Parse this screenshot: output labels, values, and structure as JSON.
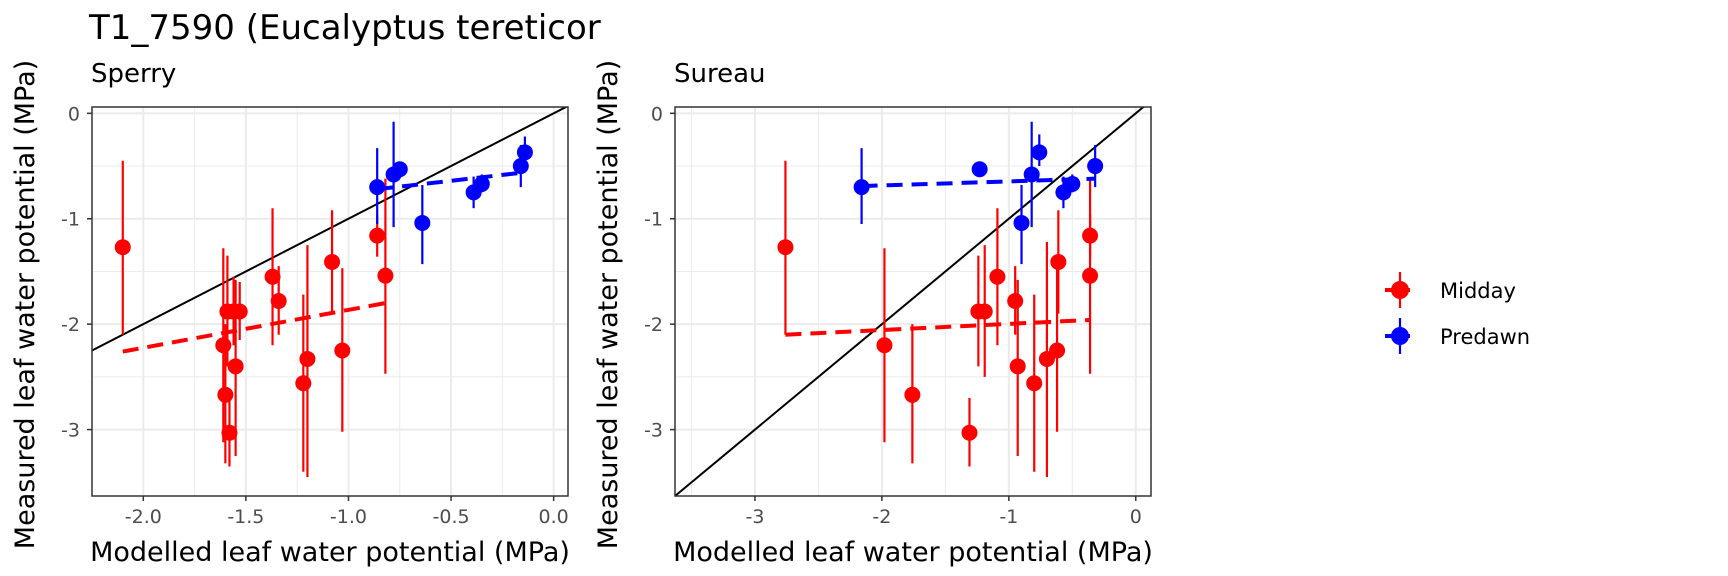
{
  "title": "T1_7590 (Eucalyptus tereticor",
  "colors": {
    "Midday": "#ff0000",
    "Predawn": "#0000ff",
    "identity": "#000000",
    "grid": "#ebebeb",
    "panel_border": "#333333"
  },
  "legend": {
    "entries": [
      "Midday",
      "Predawn"
    ],
    "position": "right"
  },
  "chart_data": [
    {
      "type": "scatter",
      "panel": "Sperry",
      "xlabel": "Modelled leaf water potential (MPa)",
      "ylabel": "Measured leaf water potential (MPa)",
      "xlim": [
        -2.25,
        0.07
      ],
      "ylim": [
        -3.63,
        0.06
      ],
      "xticks": [
        -2.0,
        -1.5,
        -1.0,
        -0.5,
        0.0
      ],
      "xtick_labels": [
        "-2.0",
        "-1.5",
        "-1.0",
        "-0.5",
        "0.0"
      ],
      "yticks": [
        0,
        -1,
        -2,
        -3
      ],
      "ytick_labels": [
        "0",
        "-1",
        "-2",
        "-3"
      ],
      "grid": true,
      "identity_line": true,
      "series": [
        {
          "name": "Midday",
          "points": [
            {
              "x": -2.1,
              "y": -1.27,
              "ylo": -2.1,
              "yhi": -0.45
            },
            {
              "x": -1.61,
              "y": -2.2,
              "ylo": -3.12,
              "yhi": -1.28
            },
            {
              "x": -1.6,
              "y": -2.67,
              "ylo": -3.32,
              "yhi": -2.0
            },
            {
              "x": -1.59,
              "y": -1.88,
              "ylo": -2.4,
              "yhi": -1.35
            },
            {
              "x": -1.58,
              "y": -3.03,
              "ylo": -3.35,
              "yhi": -2.7
            },
            {
              "x": -1.56,
              "y": -1.88,
              "ylo": -2.2,
              "yhi": -1.55
            },
            {
              "x": -1.55,
              "y": -2.4,
              "ylo": -3.25,
              "yhi": -1.58
            },
            {
              "x": -1.53,
              "y": -1.88,
              "ylo": -2.15,
              "yhi": -1.6
            },
            {
              "x": -1.37,
              "y": -1.55,
              "ylo": -2.2,
              "yhi": -0.9
            },
            {
              "x": -1.34,
              "y": -1.78,
              "ylo": -2.1,
              "yhi": -1.45
            },
            {
              "x": -1.22,
              "y": -2.56,
              "ylo": -3.4,
              "yhi": -1.72
            },
            {
              "x": -1.2,
              "y": -2.33,
              "ylo": -3.45,
              "yhi": -1.25
            },
            {
              "x": -1.08,
              "y": -1.41,
              "ylo": -1.9,
              "yhi": -0.92
            },
            {
              "x": -1.03,
              "y": -2.25,
              "ylo": -3.02,
              "yhi": -1.47
            },
            {
              "x": -0.86,
              "y": -1.16,
              "ylo": -1.36,
              "yhi": -0.96
            },
            {
              "x": -0.82,
              "y": -1.54,
              "ylo": -2.47,
              "yhi": -0.62
            }
          ],
          "fit": {
            "x": [
              -2.1,
              -0.82
            ],
            "y": [
              -2.26,
              -1.8
            ]
          }
        },
        {
          "name": "Predawn",
          "points": [
            {
              "x": -0.86,
              "y": -0.7,
              "ylo": -1.05,
              "yhi": -0.33
            },
            {
              "x": -0.78,
              "y": -0.58,
              "ylo": -1.08,
              "yhi": -0.08
            },
            {
              "x": -0.75,
              "y": -0.53,
              "ylo": -0.6,
              "yhi": -0.46
            },
            {
              "x": -0.64,
              "y": -1.04,
              "ylo": -1.43,
              "yhi": -0.68
            },
            {
              "x": -0.39,
              "y": -0.75,
              "ylo": -0.9,
              "yhi": -0.6
            },
            {
              "x": -0.35,
              "y": -0.67,
              "ylo": -0.75,
              "yhi": -0.58
            },
            {
              "x": -0.16,
              "y": -0.5,
              "ylo": -0.7,
              "yhi": -0.3
            },
            {
              "x": -0.14,
              "y": -0.37,
              "ylo": -0.5,
              "yhi": -0.22
            }
          ],
          "fit": {
            "x": [
              -0.86,
              -0.14
            ],
            "y": [
              -0.72,
              -0.56
            ]
          }
        }
      ]
    },
    {
      "type": "scatter",
      "panel": "Sureau",
      "xlabel": "Modelled leaf water potential (MPa)",
      "ylabel": "Measured leaf water potential (MPa)",
      "xlim": [
        -3.63,
        0.12
      ],
      "ylim": [
        -3.63,
        0.06
      ],
      "xticks": [
        -3,
        -2,
        -1,
        0
      ],
      "xtick_labels": [
        "-3",
        "-2",
        "-1",
        "0"
      ],
      "yticks": [
        0,
        -1,
        -2,
        -3
      ],
      "ytick_labels": [
        "0",
        "-1",
        "-2",
        "-3"
      ],
      "grid": true,
      "identity_line": true,
      "series": [
        {
          "name": "Midday",
          "points": [
            {
              "x": -2.76,
              "y": -1.27,
              "ylo": -2.1,
              "yhi": -0.45
            },
            {
              "x": -1.98,
              "y": -2.2,
              "ylo": -3.12,
              "yhi": -1.28
            },
            {
              "x": -1.76,
              "y": -2.67,
              "ylo": -3.32,
              "yhi": -2.0
            },
            {
              "x": -1.31,
              "y": -3.03,
              "ylo": -3.35,
              "yhi": -2.7
            },
            {
              "x": -1.24,
              "y": -1.88,
              "ylo": -2.4,
              "yhi": -1.35
            },
            {
              "x": -1.19,
              "y": -1.88,
              "ylo": -2.5,
              "yhi": -1.25
            },
            {
              "x": -1.09,
              "y": -1.55,
              "ylo": -2.2,
              "yhi": -0.9
            },
            {
              "x": -0.95,
              "y": -1.78,
              "ylo": -2.1,
              "yhi": -1.45
            },
            {
              "x": -0.93,
              "y": -2.4,
              "ylo": -3.25,
              "yhi": -1.58
            },
            {
              "x": -0.8,
              "y": -2.56,
              "ylo": -3.4,
              "yhi": -1.72
            },
            {
              "x": -0.7,
              "y": -2.33,
              "ylo": -3.45,
              "yhi": -1.22
            },
            {
              "x": -0.62,
              "y": -2.25,
              "ylo": -3.02,
              "yhi": -1.47
            },
            {
              "x": -0.61,
              "y": -1.41,
              "ylo": -1.9,
              "yhi": -0.92
            },
            {
              "x": -0.36,
              "y": -1.16,
              "ylo": -1.36,
              "yhi": -0.96
            },
            {
              "x": -0.36,
              "y": -1.54,
              "ylo": -2.47,
              "yhi": -0.62
            }
          ],
          "fit": {
            "x": [
              -2.76,
              -0.36
            ],
            "y": [
              -2.1,
              -1.96
            ]
          }
        },
        {
          "name": "Predawn",
          "points": [
            {
              "x": -2.16,
              "y": -0.7,
              "ylo": -1.05,
              "yhi": -0.33
            },
            {
              "x": -1.23,
              "y": -0.53,
              "ylo": -0.6,
              "yhi": -0.46
            },
            {
              "x": -0.9,
              "y": -1.04,
              "ylo": -1.43,
              "yhi": -0.68
            },
            {
              "x": -0.82,
              "y": -0.58,
              "ylo": -1.08,
              "yhi": -0.08
            },
            {
              "x": -0.76,
              "y": -0.37,
              "ylo": -0.5,
              "yhi": -0.2
            },
            {
              "x": -0.57,
              "y": -0.75,
              "ylo": -0.9,
              "yhi": -0.6
            },
            {
              "x": -0.5,
              "y": -0.67,
              "ylo": -0.75,
              "yhi": -0.58
            },
            {
              "x": -0.32,
              "y": -0.5,
              "ylo": -0.7,
              "yhi": -0.3
            }
          ],
          "fit": {
            "x": [
              -2.16,
              -0.32
            ],
            "y": [
              -0.69,
              -0.62
            ]
          }
        }
      ]
    }
  ]
}
